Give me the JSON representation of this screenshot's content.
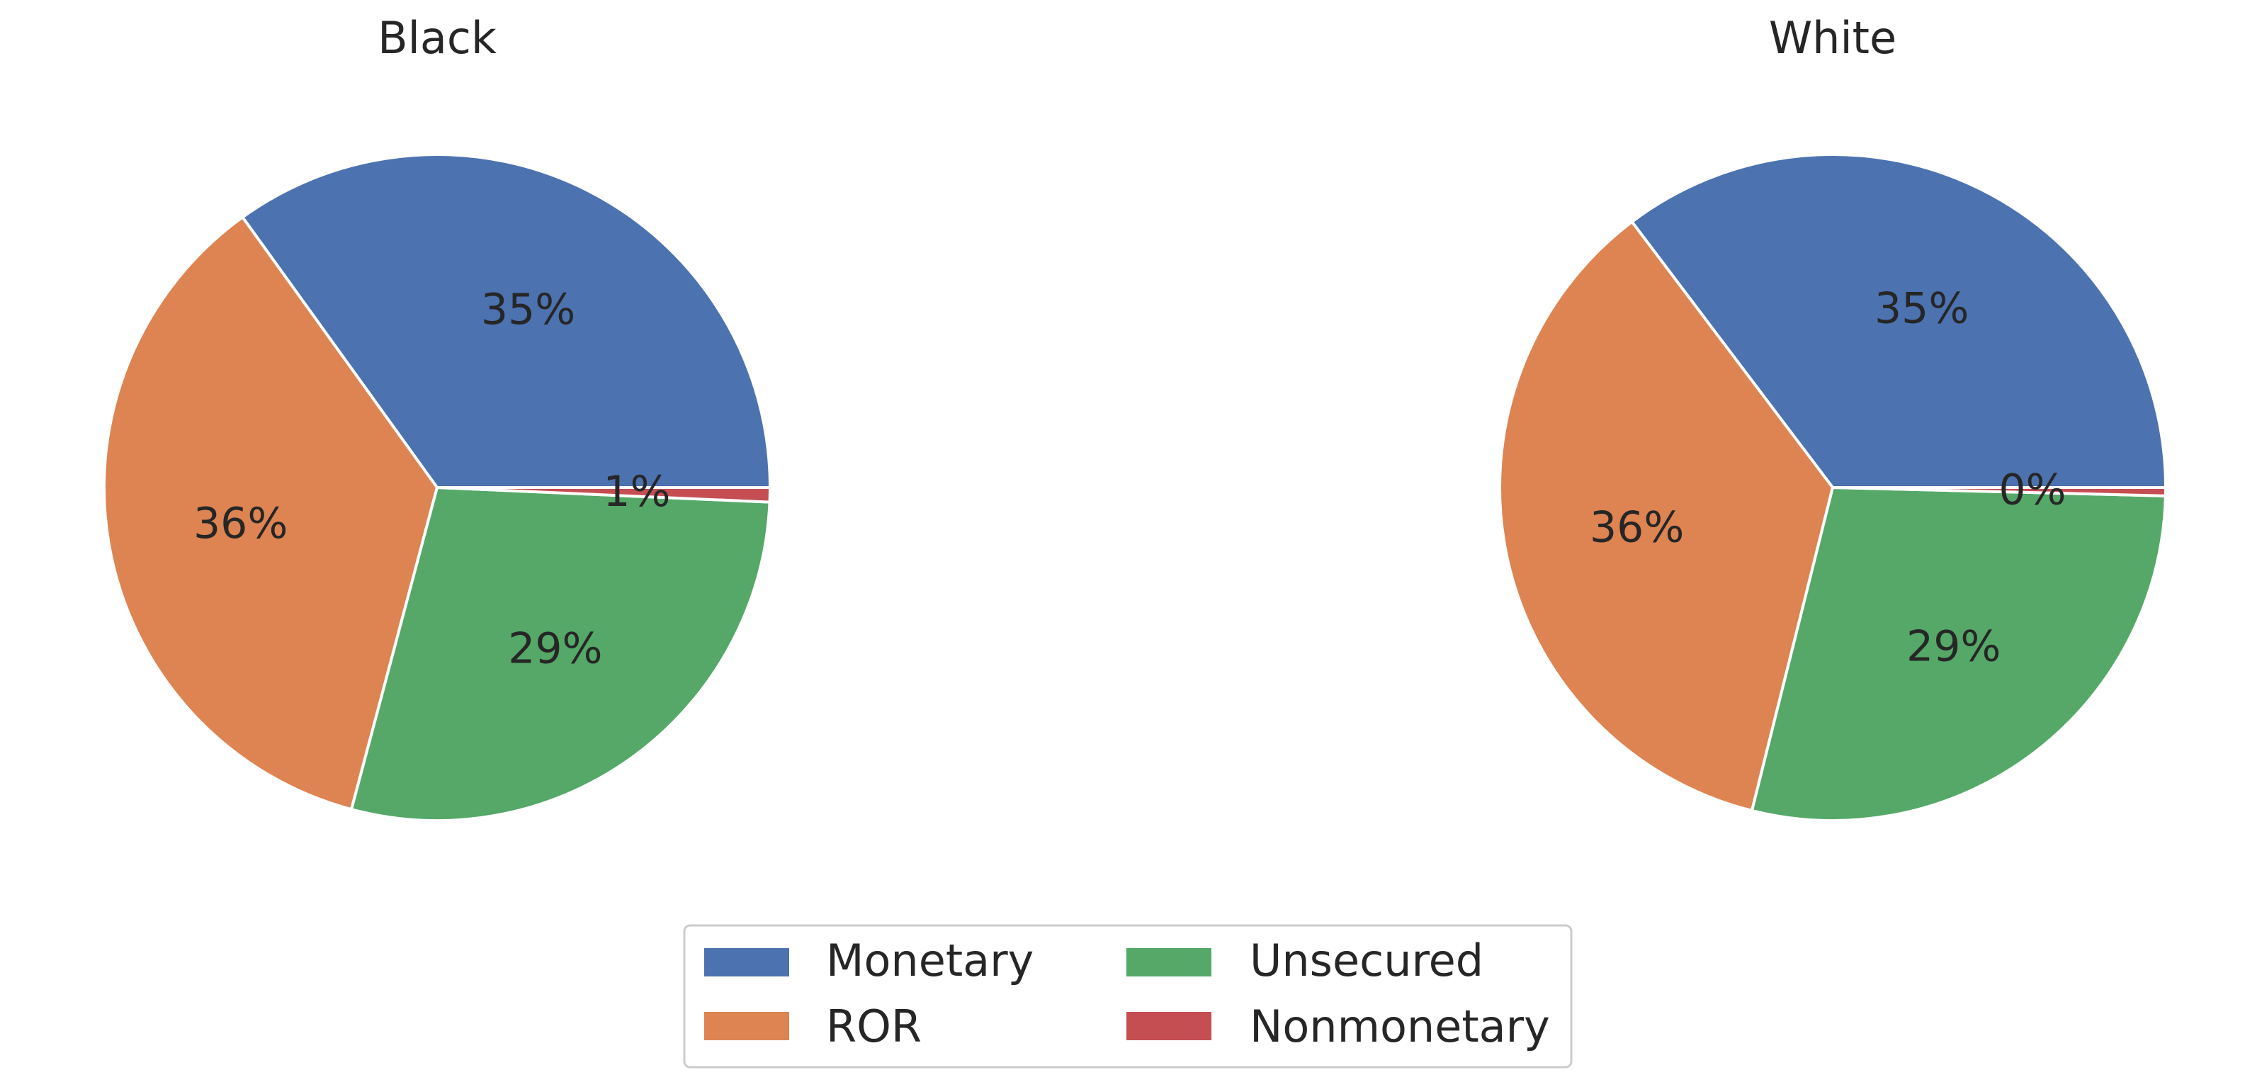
{
  "chart_data": [
    {
      "type": "pie",
      "title": "Black",
      "categories": [
        "Monetary",
        "ROR",
        "Unsecured",
        "Nonmonetary"
      ],
      "values": [
        35.0,
        36.0,
        28.5,
        0.7
      ],
      "labels": [
        "35%",
        "36%",
        "29%",
        "1%"
      ]
    },
    {
      "type": "pie",
      "title": "White",
      "categories": [
        "Monetary",
        "ROR",
        "Unsecured",
        "Nonmonetary"
      ],
      "values": [
        35.3,
        35.8,
        28.5,
        0.4
      ],
      "labels": [
        "35%",
        "36%",
        "29%",
        "0%"
      ]
    }
  ],
  "legend": {
    "entries": [
      "Monetary",
      "Unsecured",
      "ROR",
      "Nonmonetary"
    ],
    "placement": "bottom-center",
    "columns": 2
  },
  "colors": {
    "Monetary": "#4c72b0",
    "ROR": "#dd8452",
    "Unsecured": "#55a868",
    "Nonmonetary": "#c44e52"
  }
}
